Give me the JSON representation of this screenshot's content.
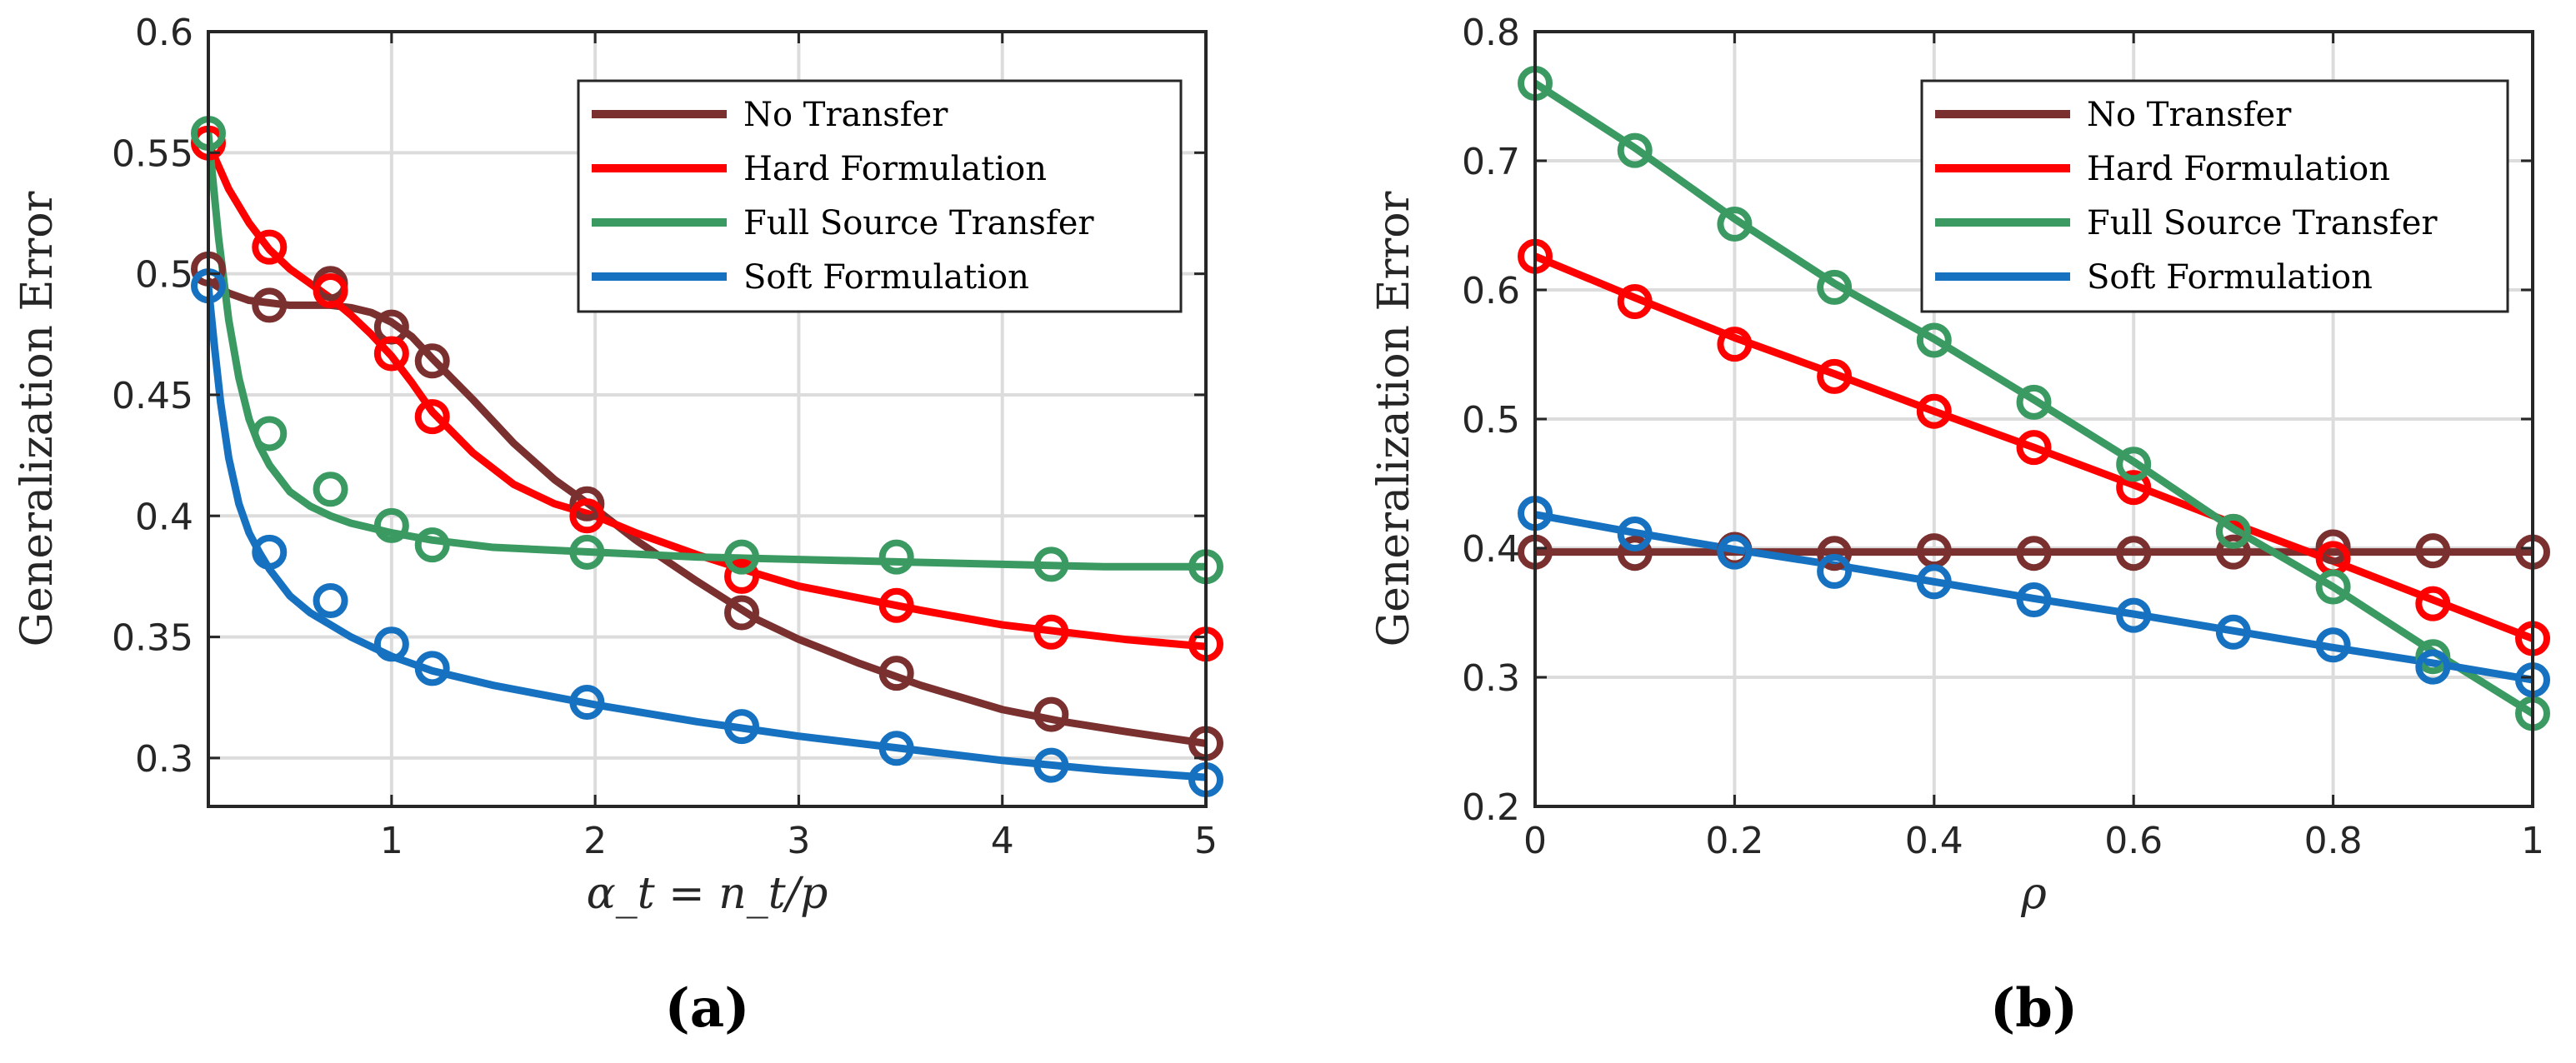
{
  "colors": {
    "no_transfer": "#7B3030",
    "hard": "#FF0000",
    "full": "#3A9A62",
    "soft": "#1672C0",
    "grid": "#DCDCDC",
    "axis": "#262626"
  },
  "chart_data": [
    {
      "type": "line",
      "panel_label": "(a)",
      "xlabel": "α_t = n_t/p",
      "ylabel": "Generalization Error",
      "xlim": [
        0.1,
        5
      ],
      "ylim": [
        0.28,
        0.6
      ],
      "xticks": [
        1,
        2,
        3,
        4,
        5
      ],
      "yticks": [
        0.3,
        0.35,
        0.4,
        0.45,
        0.5,
        0.55,
        0.6
      ],
      "grid": true,
      "legend_position": "top-right",
      "series": [
        {
          "name": "No Transfer",
          "color_key": "no_transfer",
          "line": {
            "x": [
              0.1,
              0.2,
              0.3,
              0.4,
              0.5,
              0.6,
              0.7,
              0.8,
              0.9,
              1.0,
              1.1,
              1.2,
              1.4,
              1.6,
              1.8,
              2.0,
              2.2,
              2.5,
              2.8,
              3.0,
              3.3,
              3.6,
              4.0,
              4.3,
              4.6,
              5.0
            ],
            "y": [
              0.497,
              0.492,
              0.489,
              0.488,
              0.487,
              0.487,
              0.487,
              0.486,
              0.484,
              0.48,
              0.474,
              0.465,
              0.448,
              0.43,
              0.415,
              0.403,
              0.39,
              0.373,
              0.357,
              0.349,
              0.339,
              0.33,
              0.32,
              0.315,
              0.311,
              0.306
            ]
          },
          "markers": {
            "x": [
              0.1,
              0.4,
              0.7,
              1.0,
              1.2,
              1.96,
              2.72,
              3.48,
              4.24,
              5.0
            ],
            "y": [
              0.502,
              0.487,
              0.496,
              0.478,
              0.464,
              0.405,
              0.36,
              0.335,
              0.318,
              0.306
            ]
          }
        },
        {
          "name": "Hard Formulation",
          "color_key": "hard",
          "line": {
            "x": [
              0.1,
              0.2,
              0.3,
              0.4,
              0.5,
              0.6,
              0.7,
              0.8,
              0.9,
              1.0,
              1.1,
              1.2,
              1.4,
              1.6,
              1.8,
              2.0,
              2.2,
              2.5,
              2.8,
              3.0,
              3.3,
              3.6,
              4.0,
              4.3,
              4.6,
              5.0
            ],
            "y": [
              0.554,
              0.535,
              0.521,
              0.51,
              0.502,
              0.496,
              0.49,
              0.483,
              0.475,
              0.466,
              0.455,
              0.443,
              0.426,
              0.413,
              0.405,
              0.4,
              0.393,
              0.384,
              0.376,
              0.371,
              0.366,
              0.361,
              0.355,
              0.352,
              0.349,
              0.346
            ]
          },
          "markers": {
            "x": [
              0.1,
              0.4,
              0.7,
              1.0,
              1.2,
              1.96,
              2.72,
              3.48,
              4.24,
              5.0
            ],
            "y": [
              0.554,
              0.511,
              0.493,
              0.467,
              0.441,
              0.4,
              0.375,
              0.363,
              0.352,
              0.347
            ]
          }
        },
        {
          "name": "Full Source Transfer",
          "color_key": "full",
          "line": {
            "x": [
              0.1,
              0.15,
              0.2,
              0.25,
              0.3,
              0.35,
              0.4,
              0.5,
              0.6,
              0.7,
              0.8,
              0.9,
              1.0,
              1.2,
              1.5,
              2.0,
              2.5,
              3.0,
              3.5,
              4.0,
              4.5,
              5.0
            ],
            "y": [
              0.558,
              0.515,
              0.481,
              0.457,
              0.44,
              0.429,
              0.421,
              0.41,
              0.404,
              0.4,
              0.397,
              0.395,
              0.393,
              0.39,
              0.387,
              0.385,
              0.383,
              0.382,
              0.381,
              0.38,
              0.379,
              0.379
            ]
          },
          "markers": {
            "x": [
              0.1,
              0.4,
              0.7,
              1.0,
              1.2,
              1.96,
              2.72,
              3.48,
              4.24,
              5.0
            ],
            "y": [
              0.558,
              0.434,
              0.411,
              0.396,
              0.388,
              0.385,
              0.383,
              0.383,
              0.38,
              0.379
            ]
          }
        },
        {
          "name": "Soft Formulation",
          "color_key": "soft",
          "line": {
            "x": [
              0.1,
              0.13,
              0.16,
              0.2,
              0.25,
              0.3,
              0.35,
              0.4,
              0.5,
              0.6,
              0.7,
              0.8,
              0.9,
              1.0,
              1.2,
              1.5,
              2.0,
              2.5,
              3.0,
              3.5,
              4.0,
              4.5,
              5.0
            ],
            "y": [
              0.495,
              0.47,
              0.447,
              0.424,
              0.405,
              0.393,
              0.385,
              0.378,
              0.367,
              0.36,
              0.355,
              0.35,
              0.346,
              0.342,
              0.336,
              0.33,
              0.322,
              0.315,
              0.309,
              0.304,
              0.299,
              0.295,
              0.292
            ]
          },
          "markers": {
            "x": [
              0.1,
              0.4,
              0.7,
              1.0,
              1.2,
              1.96,
              2.72,
              3.48,
              4.24,
              5.0
            ],
            "y": [
              0.495,
              0.385,
              0.365,
              0.347,
              0.337,
              0.323,
              0.313,
              0.304,
              0.297,
              0.291
            ]
          }
        }
      ]
    },
    {
      "type": "line",
      "panel_label": "(b)",
      "xlabel": "ρ",
      "ylabel": "Generalization Error",
      "xlim": [
        0,
        1
      ],
      "ylim": [
        0.2,
        0.8
      ],
      "xticks": [
        0,
        0.2,
        0.4,
        0.6,
        0.8,
        1
      ],
      "yticks": [
        0.2,
        0.3,
        0.4,
        0.5,
        0.6,
        0.7,
        0.8
      ],
      "grid": true,
      "legend_position": "top-right",
      "series": [
        {
          "name": "No Transfer",
          "color_key": "no_transfer",
          "line": {
            "x": [
              0,
              1
            ],
            "y": [
              0.397,
              0.397
            ]
          },
          "markers": {
            "x": [
              0,
              0.1,
              0.2,
              0.3,
              0.4,
              0.5,
              0.6,
              0.7,
              0.8,
              0.9,
              1.0
            ],
            "y": [
              0.397,
              0.396,
              0.399,
              0.396,
              0.398,
              0.396,
              0.396,
              0.397,
              0.401,
              0.398,
              0.397
            ]
          }
        },
        {
          "name": "Hard Formulation",
          "color_key": "hard",
          "line": {
            "x": [
              0,
              0.1,
              0.2,
              0.3,
              0.4,
              0.5,
              0.6,
              0.7,
              0.8,
              0.9,
              1.0
            ],
            "y": [
              0.626,
              0.594,
              0.563,
              0.535,
              0.506,
              0.478,
              0.449,
              0.419,
              0.39,
              0.36,
              0.33
            ]
          },
          "markers": {
            "x": [
              0,
              0.1,
              0.2,
              0.3,
              0.4,
              0.5,
              0.6,
              0.7,
              0.8,
              0.9,
              1.0
            ],
            "y": [
              0.626,
              0.591,
              0.558,
              0.533,
              0.506,
              0.478,
              0.447,
              0.413,
              0.392,
              0.357,
              0.33
            ]
          }
        },
        {
          "name": "Full Source Transfer",
          "color_key": "full",
          "line": {
            "x": [
              0,
              0.1,
              0.2,
              0.3,
              0.4,
              0.5,
              0.6,
              0.7,
              0.8,
              0.9,
              1.0
            ],
            "y": [
              0.76,
              0.71,
              0.655,
              0.605,
              0.562,
              0.515,
              0.467,
              0.415,
              0.37,
              0.32,
              0.272
            ]
          },
          "markers": {
            "x": [
              0,
              0.1,
              0.2,
              0.3,
              0.4,
              0.5,
              0.6,
              0.7,
              0.8,
              0.9,
              1.0
            ],
            "y": [
              0.76,
              0.708,
              0.651,
              0.602,
              0.561,
              0.513,
              0.465,
              0.413,
              0.37,
              0.316,
              0.272
            ]
          }
        },
        {
          "name": "Soft Formulation",
          "color_key": "soft",
          "line": {
            "x": [
              0,
              0.1,
              0.2,
              0.3,
              0.4,
              0.5,
              0.6,
              0.7,
              0.8,
              0.9,
              1.0
            ],
            "y": [
              0.426,
              0.412,
              0.399,
              0.387,
              0.374,
              0.361,
              0.349,
              0.336,
              0.323,
              0.311,
              0.298
            ]
          },
          "markers": {
            "x": [
              0,
              0.1,
              0.2,
              0.3,
              0.4,
              0.5,
              0.6,
              0.7,
              0.8,
              0.9,
              1.0
            ],
            "y": [
              0.427,
              0.411,
              0.397,
              0.382,
              0.374,
              0.36,
              0.348,
              0.335,
              0.325,
              0.308,
              0.298
            ]
          }
        }
      ]
    }
  ]
}
